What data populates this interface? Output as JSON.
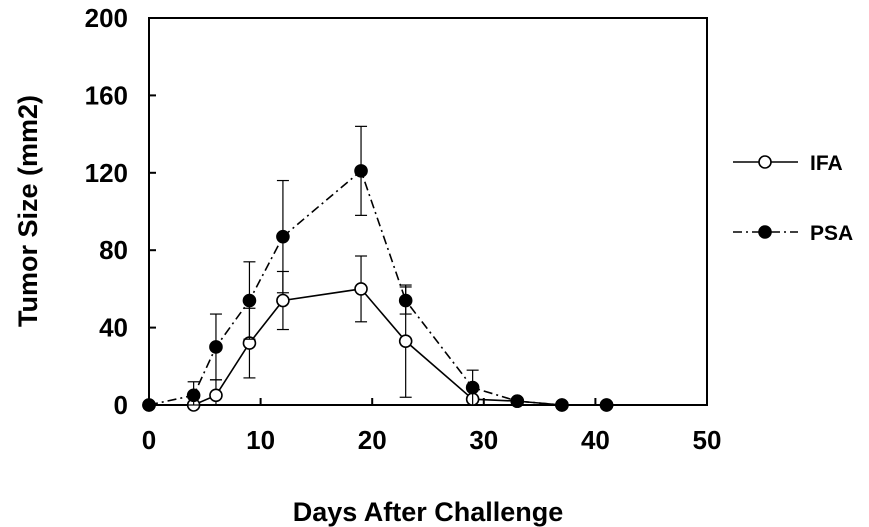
{
  "chart_data": {
    "type": "line",
    "xlabel": "Days After Challenge",
    "ylabel": "Tumor Size (mm2)",
    "xlim": [
      0,
      50
    ],
    "ylim": [
      0,
      200
    ],
    "xticks": [
      "0",
      "10",
      "20",
      "30",
      "40",
      "50"
    ],
    "yticks": [
      "0",
      "40",
      "80",
      "120",
      "160",
      "200"
    ],
    "grid": false,
    "legend_position": "right",
    "series": [
      {
        "name": "IFA",
        "marker": "open-circle",
        "line_style": "solid",
        "x": [
          0,
          4,
          6,
          9,
          12,
          19,
          23,
          29,
          33,
          37,
          41
        ],
        "y": [
          0,
          0,
          5,
          32,
          54,
          60,
          33,
          3,
          2,
          0,
          0
        ],
        "err": [
          0,
          0,
          8,
          18,
          15,
          17,
          29,
          0,
          0,
          0,
          0
        ]
      },
      {
        "name": "PSA",
        "marker": "filled-circle",
        "line_style": "dash-dot",
        "x": [
          0,
          4,
          6,
          9,
          12,
          19,
          23,
          29,
          33,
          37,
          41
        ],
        "y": [
          0,
          5,
          30,
          54,
          87,
          121,
          54,
          9,
          2,
          0,
          0
        ],
        "err": [
          0,
          7,
          17,
          20,
          29,
          23,
          7,
          9,
          0,
          0,
          0
        ]
      }
    ]
  }
}
